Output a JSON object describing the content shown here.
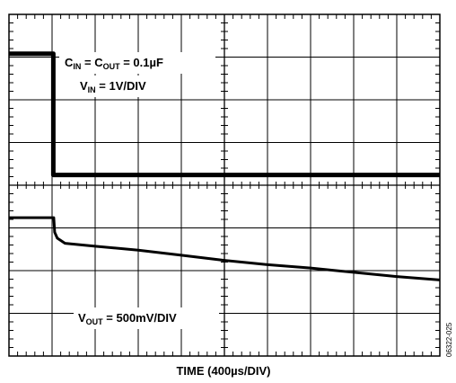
{
  "chart_data": {
    "type": "line",
    "xlabel": "TIME (400µs/DIV)",
    "x_divisions": 10,
    "y_divisions": 8,
    "grid": true,
    "annotations": {
      "cap": {
        "prefix": "C",
        "sub1": "IN",
        "mid": " = C",
        "sub2": "OUT",
        "suffix": " = 0.1µF"
      },
      "vin": {
        "prefix": "V",
        "sub": "IN",
        "suffix": " = 1V/DIV"
      },
      "vout": {
        "prefix": "V",
        "sub": "OUT",
        "suffix": " = 500mV/DIV"
      }
    },
    "side_code": "06322-025",
    "series": [
      {
        "unit_x": "div",
        "unit_y": "div",
        "points": [
          [
            0,
            7.08
          ],
          [
            1.03,
            7.08
          ],
          [
            1.03,
            4.24
          ],
          [
            10,
            4.24
          ]
        ]
      },
      {
        "unit_x": "div",
        "unit_y": "div",
        "points": [
          [
            0,
            3.24
          ],
          [
            1.04,
            3.24
          ],
          [
            1.06,
            2.9
          ],
          [
            1.12,
            2.76
          ],
          [
            1.3,
            2.64
          ],
          [
            2,
            2.57
          ],
          [
            3,
            2.48
          ],
          [
            4,
            2.36
          ],
          [
            5,
            2.24
          ],
          [
            6,
            2.14
          ],
          [
            7,
            2.06
          ],
          [
            8,
            1.96
          ],
          [
            9,
            1.86
          ],
          [
            10,
            1.78
          ]
        ]
      }
    ]
  }
}
